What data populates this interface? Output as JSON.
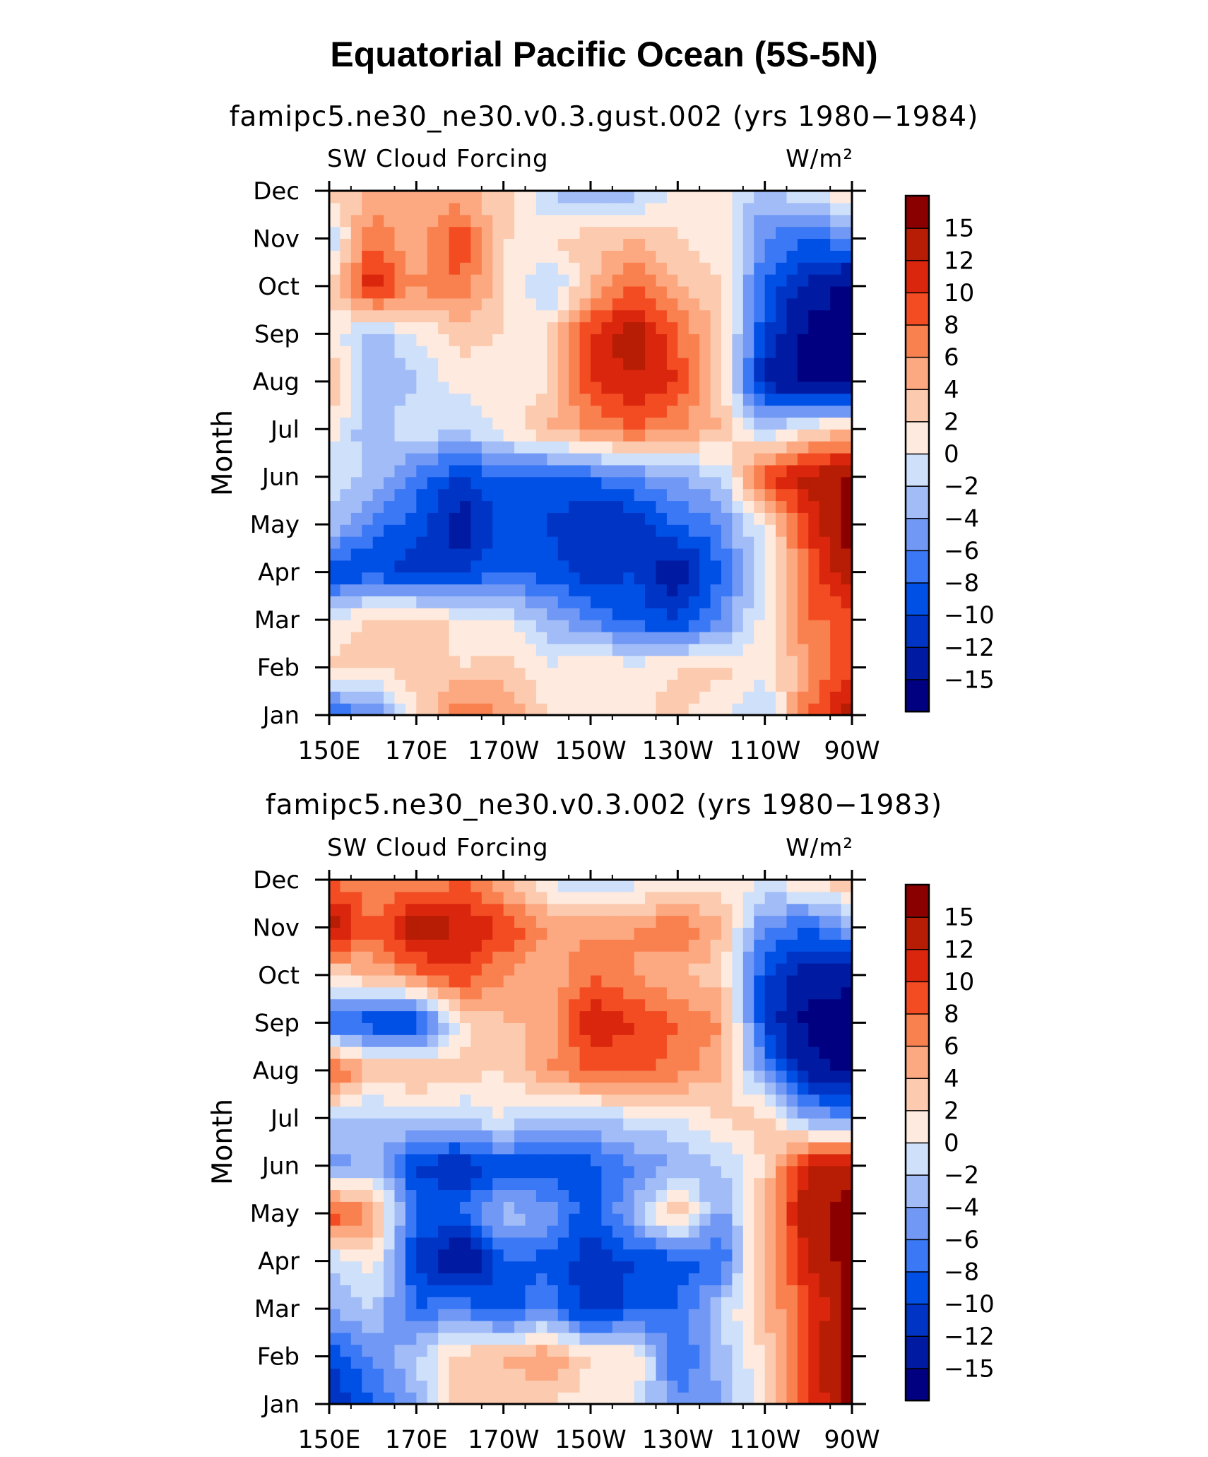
{
  "title": "Equatorial Pacific Ocean (5S-5N)",
  "chart_data": [
    {
      "type": "heatmap",
      "title": "famipc5.ne30_ne30.v0.3.gust.002 (yrs 1980−1984)",
      "left_string": "SW Cloud Forcing",
      "units": "W/m²",
      "ylabel": "Month",
      "xlabel": "",
      "x_ticks": [
        "150E",
        "170E",
        "170W",
        "150W",
        "130W",
        "110W",
        "90W"
      ],
      "y_ticks": [
        "Jan",
        "Feb",
        "Mar",
        "Apr",
        "May",
        "Jun",
        "Jul",
        "Aug",
        "Sep",
        "Oct",
        "Nov",
        "Dec"
      ],
      "x_lon": [
        150,
        160,
        170,
        180,
        190,
        200,
        210,
        220,
        230,
        240,
        250,
        260,
        270
      ],
      "values": [
        [
          -9,
          -6,
          1,
          8,
          6,
          2,
          0,
          1,
          3,
          0,
          -2,
          8,
          14
        ],
        [
          3,
          2,
          4,
          2,
          3,
          0,
          2,
          1,
          2,
          3,
          0,
          6,
          10
        ],
        [
          0,
          3,
          4,
          1,
          0,
          -3,
          -6,
          -9,
          -10,
          -6,
          1,
          8,
          8
        ],
        [
          -11,
          -9,
          -12,
          -10,
          -8,
          -9,
          -11,
          -10,
          -14,
          -8,
          0,
          8,
          15
        ],
        [
          -2,
          -7,
          -9,
          -14,
          -9,
          -10,
          -12,
          -12,
          -8,
          -6,
          1,
          10,
          17
        ],
        [
          -1,
          -2,
          -7,
          -10,
          -8,
          -9,
          -8,
          -6,
          -4,
          -2,
          10,
          13,
          16
        ],
        [
          1,
          -4,
          0,
          -2,
          1,
          4,
          6,
          8,
          6,
          4,
          -2,
          2,
          3
        ],
        [
          5,
          -4,
          -2,
          1,
          0,
          2,
          10,
          12,
          10,
          2,
          -13,
          -16,
          -17
        ],
        [
          1,
          -3,
          0,
          3,
          2,
          2,
          10,
          14,
          8,
          3,
          -10,
          -16,
          -17
        ],
        [
          2,
          12,
          6,
          8,
          2,
          -3,
          4,
          8,
          4,
          2,
          -8,
          -13,
          -16
        ],
        [
          -2,
          8,
          4,
          10,
          2,
          2,
          3,
          4,
          2,
          1,
          -6,
          -8,
          -6
        ],
        [
          3,
          4,
          6,
          4,
          3,
          -2,
          -4,
          -3,
          1,
          1,
          -3,
          0,
          2
        ]
      ],
      "colorbar_labels": [
        "15",
        "12",
        "10",
        "8",
        "6",
        "4",
        "2",
        "0",
        "−2",
        "−4",
        "−6",
        "−8",
        "−10",
        "−12",
        "−15"
      ]
    },
    {
      "type": "heatmap",
      "title": "famipc5.ne30_ne30.v0.3.002 (yrs 1980−1983)",
      "left_string": "SW Cloud Forcing",
      "units": "W/m²",
      "ylabel": "Month",
      "xlabel": "",
      "x_ticks": [
        "150E",
        "170E",
        "170W",
        "150W",
        "130W",
        "110W",
        "90W"
      ],
      "y_ticks": [
        "Jan",
        "Feb",
        "Mar",
        "Apr",
        "May",
        "Jun",
        "Jul",
        "Aug",
        "Sep",
        "Oct",
        "Nov",
        "Dec"
      ],
      "x_lon": [
        150,
        160,
        170,
        180,
        190,
        200,
        210,
        220,
        230,
        240,
        250,
        260,
        270
      ],
      "values": [
        [
          -12,
          -8,
          -4,
          4,
          3,
          2,
          1,
          0,
          -6,
          -4,
          2,
          9,
          16
        ],
        [
          -10,
          -6,
          -2,
          3,
          4,
          6,
          2,
          2,
          -8,
          -3,
          2,
          10,
          17
        ],
        [
          -4,
          -2,
          -8,
          -6,
          -10,
          -6,
          -12,
          -9,
          -8,
          -2,
          4,
          9,
          16
        ],
        [
          -2,
          1,
          -10,
          -16,
          -8,
          -9,
          -11,
          -10,
          -9,
          -8,
          5,
          12,
          17
        ],
        [
          10,
          6,
          -9,
          -8,
          -3,
          -4,
          -10,
          -3,
          4,
          -5,
          4,
          14,
          17
        ],
        [
          -5,
          -3,
          -10,
          -12,
          -9,
          -10,
          -9,
          -6,
          -4,
          -2,
          2,
          12,
          14
        ],
        [
          -2,
          -3,
          -1,
          -2,
          0,
          -3,
          -2,
          -1,
          0,
          2,
          3,
          -4,
          -6
        ],
        [
          10,
          4,
          4,
          3,
          2,
          6,
          8,
          9,
          7,
          4,
          -6,
          -14,
          -16
        ],
        [
          -8,
          -10,
          -11,
          1,
          4,
          4,
          12,
          10,
          8,
          6,
          -10,
          -16,
          -17
        ],
        [
          2,
          4,
          7,
          10,
          6,
          4,
          8,
          6,
          4,
          3,
          -10,
          -14,
          -14
        ],
        [
          14,
          8,
          14,
          12,
          10,
          6,
          5,
          6,
          8,
          4,
          -6,
          -8,
          -4
        ],
        [
          8,
          6,
          6,
          8,
          4,
          0,
          -3,
          -1,
          0,
          1,
          0,
          2,
          4
        ]
      ],
      "colorbar_labels": [
        "15",
        "12",
        "10",
        "8",
        "6",
        "4",
        "2",
        "0",
        "−2",
        "−4",
        "−6",
        "−8",
        "−10",
        "−12",
        "−15"
      ]
    }
  ],
  "colorbar_colors": [
    "#000080",
    "#001ba2",
    "#0034c4",
    "#0050e6",
    "#3b78f5",
    "#7098f4",
    "#a1bcf7",
    "#cfe0fa",
    "#feeade",
    "#fccaae",
    "#fca881",
    "#f9804f",
    "#f34c23",
    "#d9260c",
    "#b71c05",
    "#8a0000"
  ],
  "colorbar_levels": [
    -15,
    -12,
    -10,
    -8,
    -6,
    -4,
    -2,
    0,
    2,
    4,
    6,
    8,
    10,
    12,
    15
  ]
}
